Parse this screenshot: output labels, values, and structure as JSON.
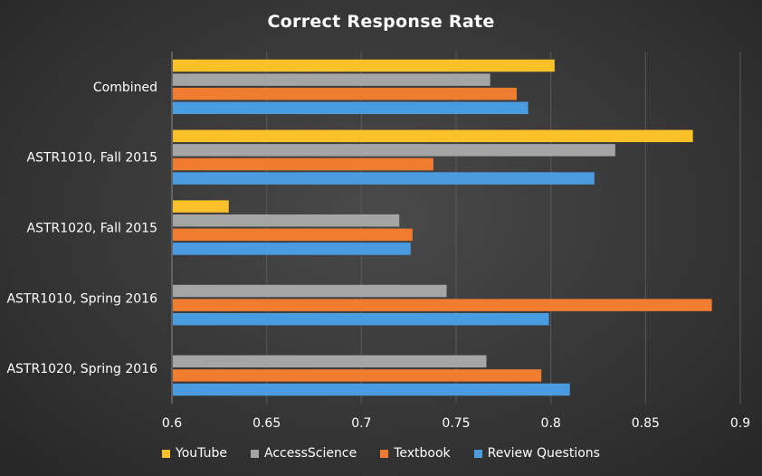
{
  "chart_data": {
    "type": "bar",
    "orientation": "horizontal",
    "title": "Correct Response Rate",
    "categories": [
      "Combined",
      "ASTR1010, Fall 2015",
      "ASTR1020, Fall 2015",
      "ASTR1010, Spring 2016",
      "ASTR1020, Spring 2016"
    ],
    "series": [
      {
        "name": "YouTube",
        "color": "#F9C128",
        "values": [
          0.802,
          0.875,
          0.63,
          null,
          null
        ]
      },
      {
        "name": "AccessScience",
        "color": "#A5A5A5",
        "values": [
          0.768,
          0.834,
          0.72,
          0.745,
          0.766
        ]
      },
      {
        "name": "Textbook",
        "color": "#F07C30",
        "values": [
          0.782,
          0.738,
          0.727,
          0.885,
          0.795
        ]
      },
      {
        "name": "Review Questions",
        "color": "#4A9CE0",
        "values": [
          0.788,
          0.823,
          0.726,
          0.799,
          0.81
        ]
      }
    ],
    "xlim": [
      0.6,
      0.9
    ],
    "xticks": [
      "0.6",
      "0.65",
      "0.7",
      "0.75",
      "0.8",
      "0.85",
      "0.9"
    ],
    "grid": true,
    "legend_position": "bottom"
  }
}
